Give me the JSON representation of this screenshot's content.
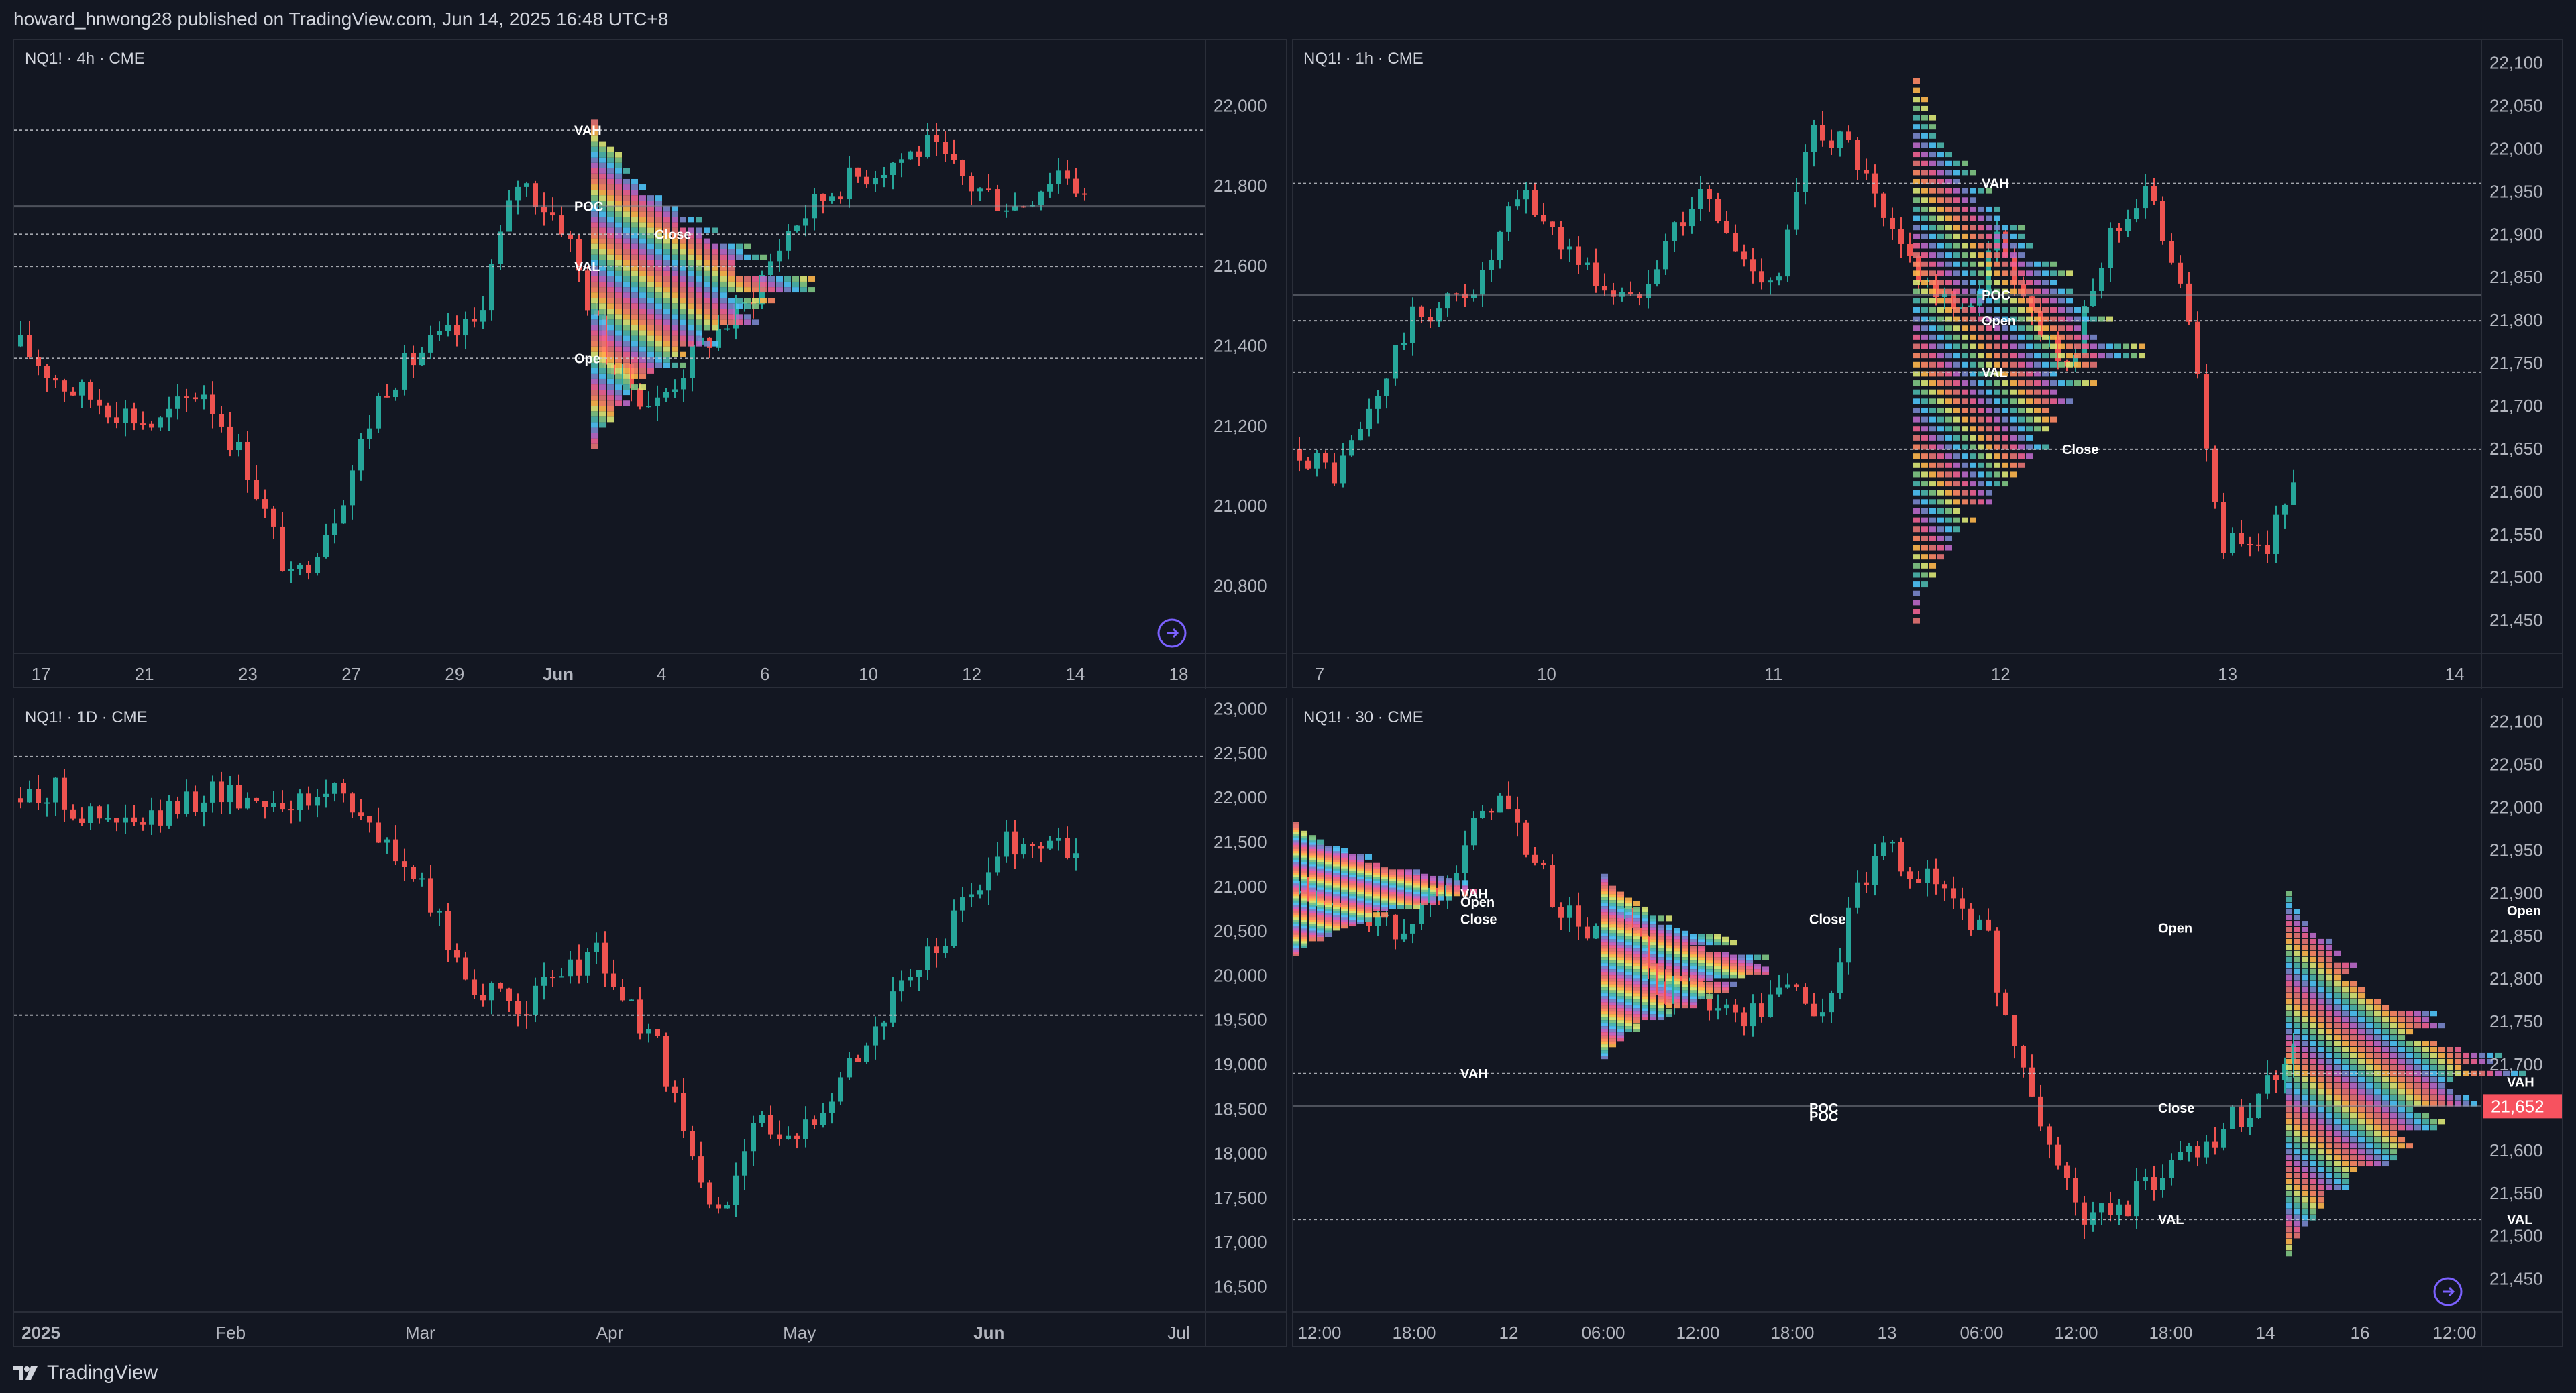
{
  "header": {
    "published": "howard_hnwong28 published on TradingView.com, Jun 14, 2025 16:48 UTC+8"
  },
  "footer": {
    "brand": "TradingView"
  },
  "colors": {
    "background": "#131722",
    "up": "#26a69a",
    "down": "#ef5350",
    "grid": "#2a2e39",
    "axis_text": "#b2b5be",
    "last_price_bg": "#f7525f"
  },
  "chart_data": [
    {
      "type": "candlestick",
      "symbol_label": "NQ1! · 4h · CME",
      "x_ticks": [
        "17",
        "21",
        "23",
        "27",
        "29",
        "Jun",
        "4",
        "6",
        "10",
        "12",
        "14",
        "18"
      ],
      "y_ticks": [
        22000,
        21800,
        21600,
        21400,
        21200,
        21000,
        20800
      ],
      "ylim": [
        20650,
        22150
      ],
      "levels": {
        "VAH": 21940,
        "POC": 21750,
        "VAL": 21600,
        "Open": 21370,
        "Close": 21680
      },
      "level_labels": [
        "VAH",
        "POC",
        "VAL",
        "Close",
        "Ope"
      ],
      "last_price": 21652
    },
    {
      "type": "candlestick",
      "symbol_label": "NQ1! · 1h · CME",
      "x_ticks": [
        "7",
        "10",
        "11",
        "12",
        "13",
        "14"
      ],
      "y_ticks": [
        22100,
        22050,
        22000,
        21950,
        21900,
        21850,
        21800,
        21750,
        21700,
        21650,
        21600,
        21550,
        21500,
        21450
      ],
      "ylim": [
        21420,
        22120
      ],
      "levels": {
        "VAH": 21960,
        "POC": 21830,
        "VAL": 21740,
        "Open": 21800,
        "Close": 21650
      },
      "level_labels": [
        "VAH",
        "POC",
        "Open",
        "VAL",
        "Close"
      ],
      "last_price": 21652
    },
    {
      "type": "candlestick",
      "symbol_label": "NQ1! · 1D · CME",
      "x_ticks": [
        "2025",
        "Feb",
        "Mar",
        "Apr",
        "May",
        "Jun",
        "Jul"
      ],
      "y_ticks": [
        23000,
        22500,
        22000,
        21500,
        21000,
        20500,
        20000,
        19500,
        19000,
        18500,
        18000,
        17500,
        17000,
        16500
      ],
      "ylim": [
        16300,
        23050
      ],
      "levels": {
        "upper": 22470,
        "lower": 19560
      },
      "last_price": 21652
    },
    {
      "type": "candlestick",
      "symbol_label": "NQ1! · 30 · CME",
      "x_ticks": [
        "12:00",
        "18:00",
        "12",
        "06:00",
        "12:00",
        "18:00",
        "13",
        "06:00",
        "12:00",
        "18:00",
        "14",
        "16",
        "12:00"
      ],
      "y_ticks": [
        22100,
        22050,
        22000,
        21950,
        21900,
        21850,
        21800,
        21750,
        21700,
        21650,
        21600,
        21550,
        21500,
        21450
      ],
      "ylim": [
        21420,
        22120
      ],
      "levels": {
        "VAH": 21690,
        "POC": 21652,
        "VAL": 21520
      },
      "level_labels": [
        "VAH",
        "Close",
        "Open",
        "VAH",
        "Open",
        "POC",
        "VAL",
        "Open",
        "VAH",
        "POC",
        "Close",
        "VAL",
        "Close"
      ],
      "last_price": 21652,
      "last_price_label": "21,652"
    }
  ]
}
